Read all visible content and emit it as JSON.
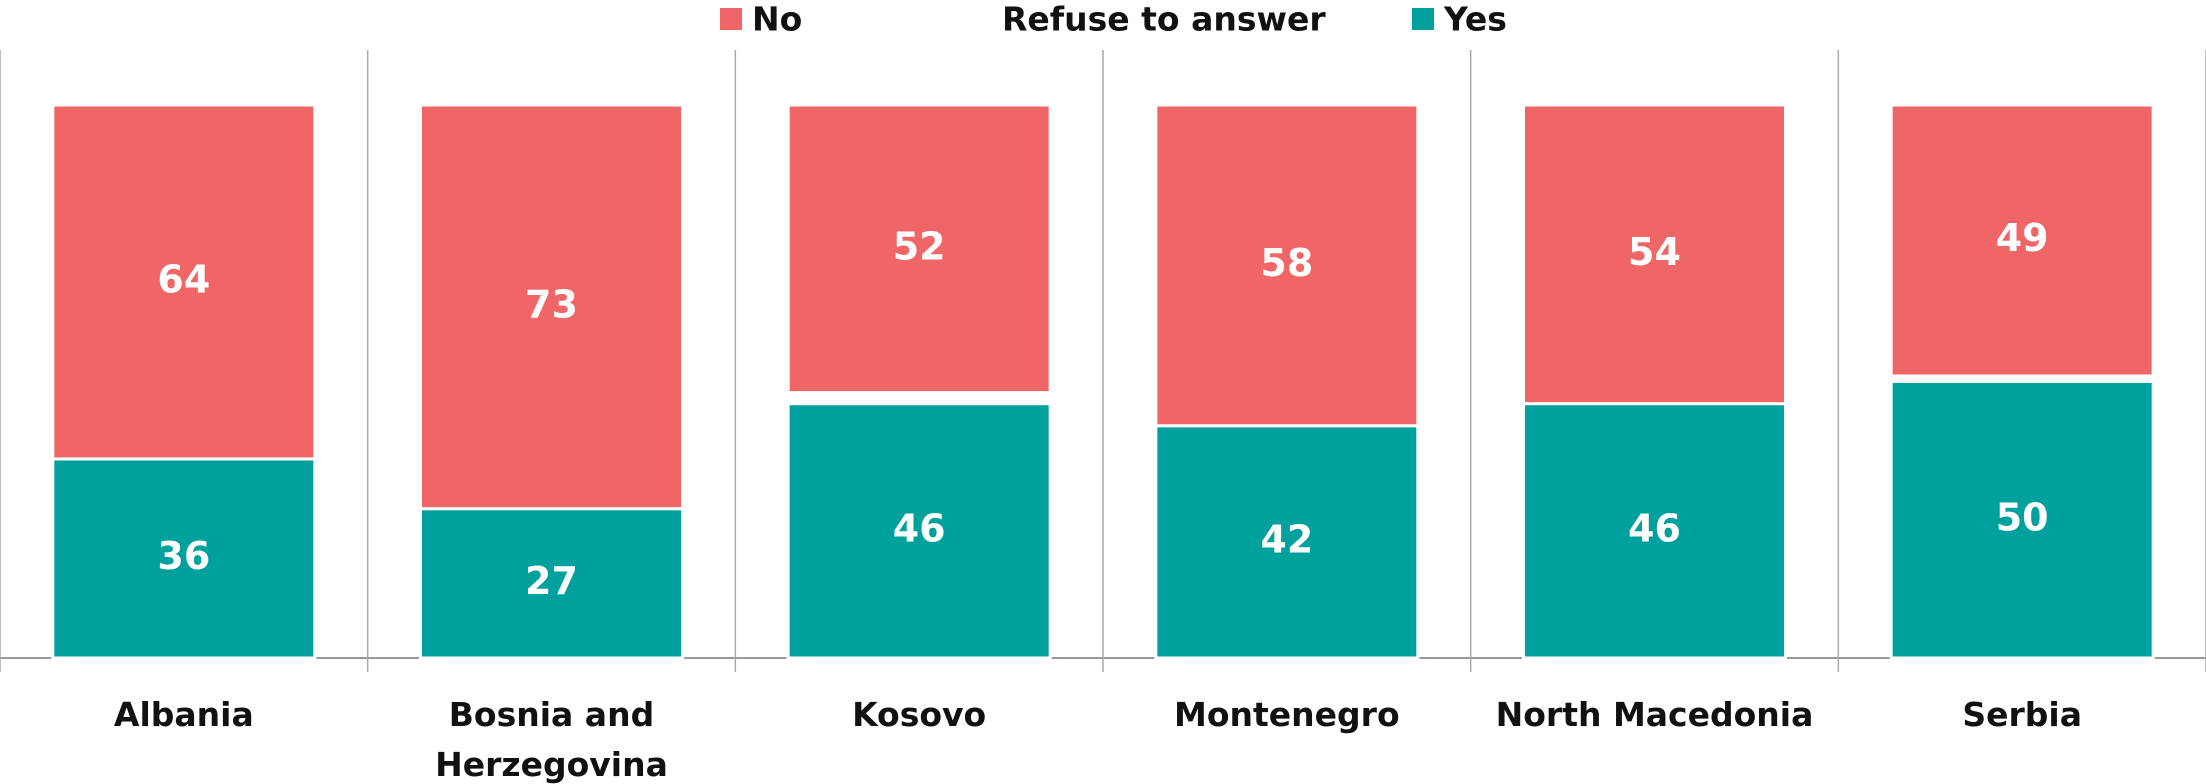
{
  "chart_data": {
    "type": "stacked_bar",
    "categories": [
      "Albania",
      "Bosnia and Herzegovina",
      "Kosovo",
      "Montenegro",
      "North Macedonia",
      "Serbia"
    ],
    "series": [
      {
        "name": "Yes",
        "color": "#00a19d",
        "values": [
          36,
          27,
          46,
          42,
          46,
          50
        ]
      },
      {
        "name": "Refuse to answer",
        "color": "#ffffff",
        "values": [
          0,
          0,
          2,
          0,
          0,
          1
        ]
      },
      {
        "name": "No",
        "color": "#f06666",
        "values": [
          64,
          73,
          52,
          58,
          54,
          49
        ]
      }
    ],
    "legend_order": [
      2,
      1,
      0
    ],
    "ylim": [
      0,
      100
    ]
  }
}
